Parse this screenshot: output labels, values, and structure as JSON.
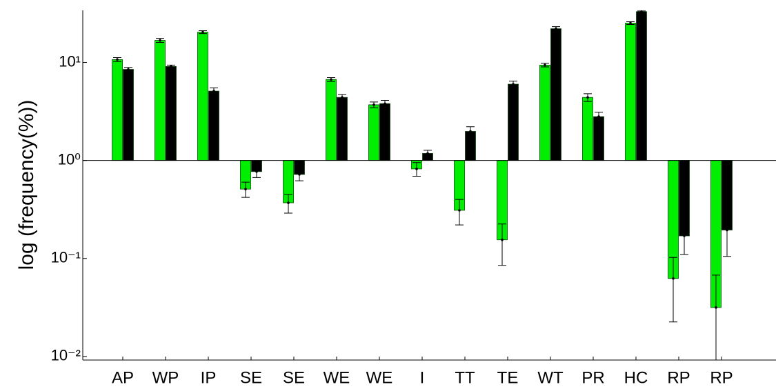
{
  "chart_data": {
    "type": "bar",
    "y_label": "log (frequency(%))",
    "log_scale": true,
    "baseline": 1,
    "categories": [
      "AP",
      "WP",
      "IP",
      "SE",
      "SE",
      "WE",
      "WE",
      "I",
      "TT",
      "TE",
      "WT",
      "PR",
      "HC",
      "RP",
      "RP"
    ],
    "series": [
      {
        "color": "#00ee00",
        "values": [
          10.7,
          16.8,
          20.4,
          0.51,
          0.37,
          6.7,
          3.7,
          0.82,
          0.31,
          0.155,
          9.4,
          4.4,
          25.2,
          0.0625,
          0.0316
        ],
        "errors": [
          0.5,
          0.8,
          0.7,
          0.09,
          0.08,
          0.3,
          0.25,
          0.13,
          0.09,
          0.07,
          0.4,
          0.4,
          0.8,
          0.04,
          0.036
        ]
      },
      {
        "color": "#000000",
        "values": [
          8.5,
          9.1,
          5.1,
          0.77,
          0.72,
          4.4,
          3.8,
          1.18,
          1.98,
          6.0,
          22.1,
          2.8,
          33,
          0.17,
          0.195
        ],
        "errors": [
          0.4,
          0.3,
          0.4,
          0.1,
          0.1,
          0.3,
          0.3,
          0.09,
          0.23,
          0.45,
          1.1,
          0.3,
          0.5,
          0.06,
          0.09
        ]
      }
    ],
    "ylim": [
      0.0092,
      34
    ],
    "yticks": [
      {
        "value": 0.01,
        "label": "10⁻²"
      },
      {
        "value": 0.1,
        "label": "10⁻¹"
      },
      {
        "value": 1,
        "label": "10⁰"
      },
      {
        "value": 10,
        "label": "10¹"
      }
    ]
  }
}
